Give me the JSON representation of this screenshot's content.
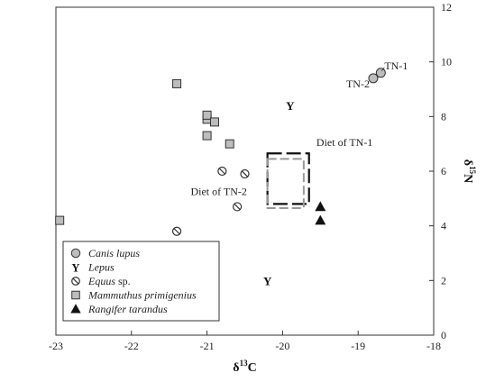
{
  "chart_data": {
    "type": "scatter",
    "xlabel": "δ13C",
    "ylabel": "δ15N",
    "xlim": [
      -23,
      -18
    ],
    "ylim": [
      0,
      12
    ],
    "x_ticks": [
      "-23",
      "-22",
      "-21",
      "-20",
      "-19",
      "-18"
    ],
    "y_ticks": [
      "0",
      "2",
      "4",
      "6",
      "8",
      "10",
      "12"
    ],
    "grid": false,
    "legend_position": "bottom-left",
    "series": [
      {
        "name": "Canis lupus",
        "marker": "circle",
        "points": [
          [
            -18.8,
            9.4
          ],
          [
            -18.7,
            9.6
          ]
        ]
      },
      {
        "name": "Lepus",
        "marker": "Y",
        "points": [
          [
            -19.9,
            8.4
          ],
          [
            -20.2,
            2.0
          ]
        ]
      },
      {
        "name": "Equus sp.",
        "marker": "circle-slash",
        "points": [
          [
            -20.8,
            6.0
          ],
          [
            -20.5,
            5.9
          ],
          [
            -20.6,
            4.7
          ],
          [
            -21.4,
            3.8
          ]
        ]
      },
      {
        "name": "Mammuthus primigenius",
        "marker": "square",
        "points": [
          [
            -21.4,
            9.2
          ],
          [
            -21.0,
            7.9
          ],
          [
            -21.0,
            8.05
          ],
          [
            -20.9,
            7.8
          ],
          [
            -20.7,
            7.0
          ],
          [
            -21.0,
            7.3
          ],
          [
            -22.95,
            4.2
          ]
        ]
      },
      {
        "name": "Rangifer tarandus",
        "marker": "triangle",
        "points": [
          [
            -19.5,
            4.7
          ],
          [
            -19.5,
            4.2
          ]
        ]
      }
    ],
    "annotations": [
      {
        "text": "TN-1",
        "x": -18.7,
        "y": 9.6
      },
      {
        "text": "TN-2",
        "x": -18.8,
        "y": 9.4
      },
      {
        "text": "Diet of TN-1",
        "x": -19.6,
        "y": 6.6
      },
      {
        "text": "Diet of TN-2",
        "x": -20.4,
        "y": 5.2
      }
    ],
    "diet_boxes": [
      {
        "name": "Diet of TN-1",
        "x": [
          -20.2,
          -19.65
        ],
        "y": [
          4.8,
          6.65
        ],
        "style": "dashed-black"
      },
      {
        "name": "Diet of TN-2",
        "x": [
          -20.2,
          -19.72
        ],
        "y": [
          4.65,
          6.45
        ],
        "style": "dashed-gray"
      }
    ]
  },
  "legend": {
    "items": [
      {
        "label": "Canis lupus",
        "marker": "circle",
        "italic": true
      },
      {
        "label": "Lepus",
        "marker": "Y",
        "italic": true
      },
      {
        "label": "Equus",
        "suffix": " sp.",
        "marker": "circle-slash",
        "italic": true
      },
      {
        "label": "Mammuthus primigenius",
        "marker": "square",
        "italic": true
      },
      {
        "label": "Rangifer tarandus",
        "marker": "triangle",
        "italic": true
      }
    ]
  },
  "colors": {
    "marker_fill": "#bdbdbd",
    "marker_stroke": "#333333",
    "triangle_fill": "#111111",
    "axis": "#333333",
    "diet_box_gray": "#999999"
  }
}
